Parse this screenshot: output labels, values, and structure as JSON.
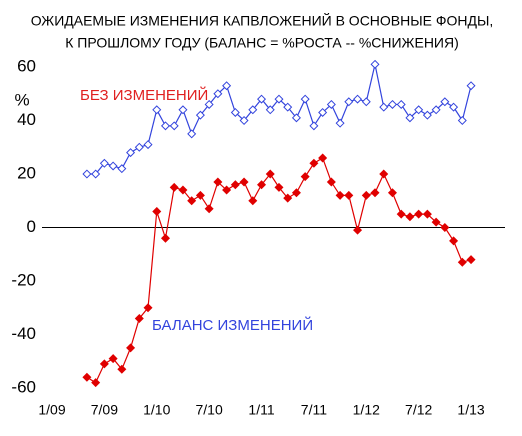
{
  "chart_data": {
    "type": "line",
    "title": [
      "ОЖИДАЕМЫЕ ИЗМЕНЕНИЯ КАПВЛОЖЕНИЙ В ОСНОВНЫЕ ФОНДЫ,",
      "К ПРОШЛОМУ ГОДУ (БАЛАНС = %РОСТА -- %СНИЖЕНИЯ)"
    ],
    "y_label": "%",
    "x": [
      "5/09",
      "6/09",
      "7/09",
      "8/09",
      "9/09",
      "10/09",
      "11/09",
      "12/09",
      "1/10",
      "2/10",
      "3/10",
      "4/10",
      "5/10",
      "6/10",
      "7/10",
      "8/10",
      "9/10",
      "10/10",
      "11/10",
      "12/10",
      "1/11",
      "2/11",
      "3/11",
      "4/11",
      "5/11",
      "6/11",
      "7/11",
      "8/11",
      "9/11",
      "10/11",
      "11/11",
      "12/11",
      "1/12",
      "2/12",
      "3/12",
      "4/12",
      "5/12",
      "6/12",
      "7/12",
      "8/12",
      "9/12",
      "10/12",
      "11/12",
      "12/12",
      "1/13"
    ],
    "xticks": [
      "1/09",
      "7/09",
      "1/10",
      "7/10",
      "1/11",
      "7/11",
      "1/12",
      "7/12",
      "1/13"
    ],
    "ylim": [
      -60,
      60
    ],
    "yticks": [
      -60,
      -40,
      -20,
      0,
      20,
      40,
      60
    ],
    "series": [
      {
        "name": "БЕЗ ИЗМЕНЕНИЙ",
        "color": "#3344dd",
        "label_color": "#e02020",
        "marker": "hollow-diamond",
        "values": [
          20,
          20,
          24,
          23,
          22,
          28,
          30,
          31,
          44,
          38,
          38,
          44,
          35,
          42,
          46,
          50,
          53,
          43,
          40,
          44,
          48,
          44,
          48,
          45,
          41,
          48,
          38,
          43,
          46,
          39,
          47,
          48,
          47,
          61,
          45,
          46,
          46,
          41,
          44,
          42,
          44,
          47,
          45,
          40,
          53
        ]
      },
      {
        "name": "БАЛАНС ИЗМЕНЕНИЙ",
        "color": "#e00000",
        "label_color": "#3344dd",
        "marker": "filled-diamond",
        "values": [
          -56,
          -58,
          -51,
          -49,
          -53,
          -45,
          -34,
          -30,
          6,
          -4,
          15,
          14,
          10,
          12,
          7,
          17,
          14,
          16,
          17,
          10,
          16,
          20,
          15,
          11,
          13,
          19,
          24,
          26,
          17,
          12,
          12,
          -1,
          12,
          13,
          20,
          13,
          5,
          4,
          5,
          5,
          2,
          0,
          -5,
          -13,
          -12
        ]
      }
    ]
  }
}
